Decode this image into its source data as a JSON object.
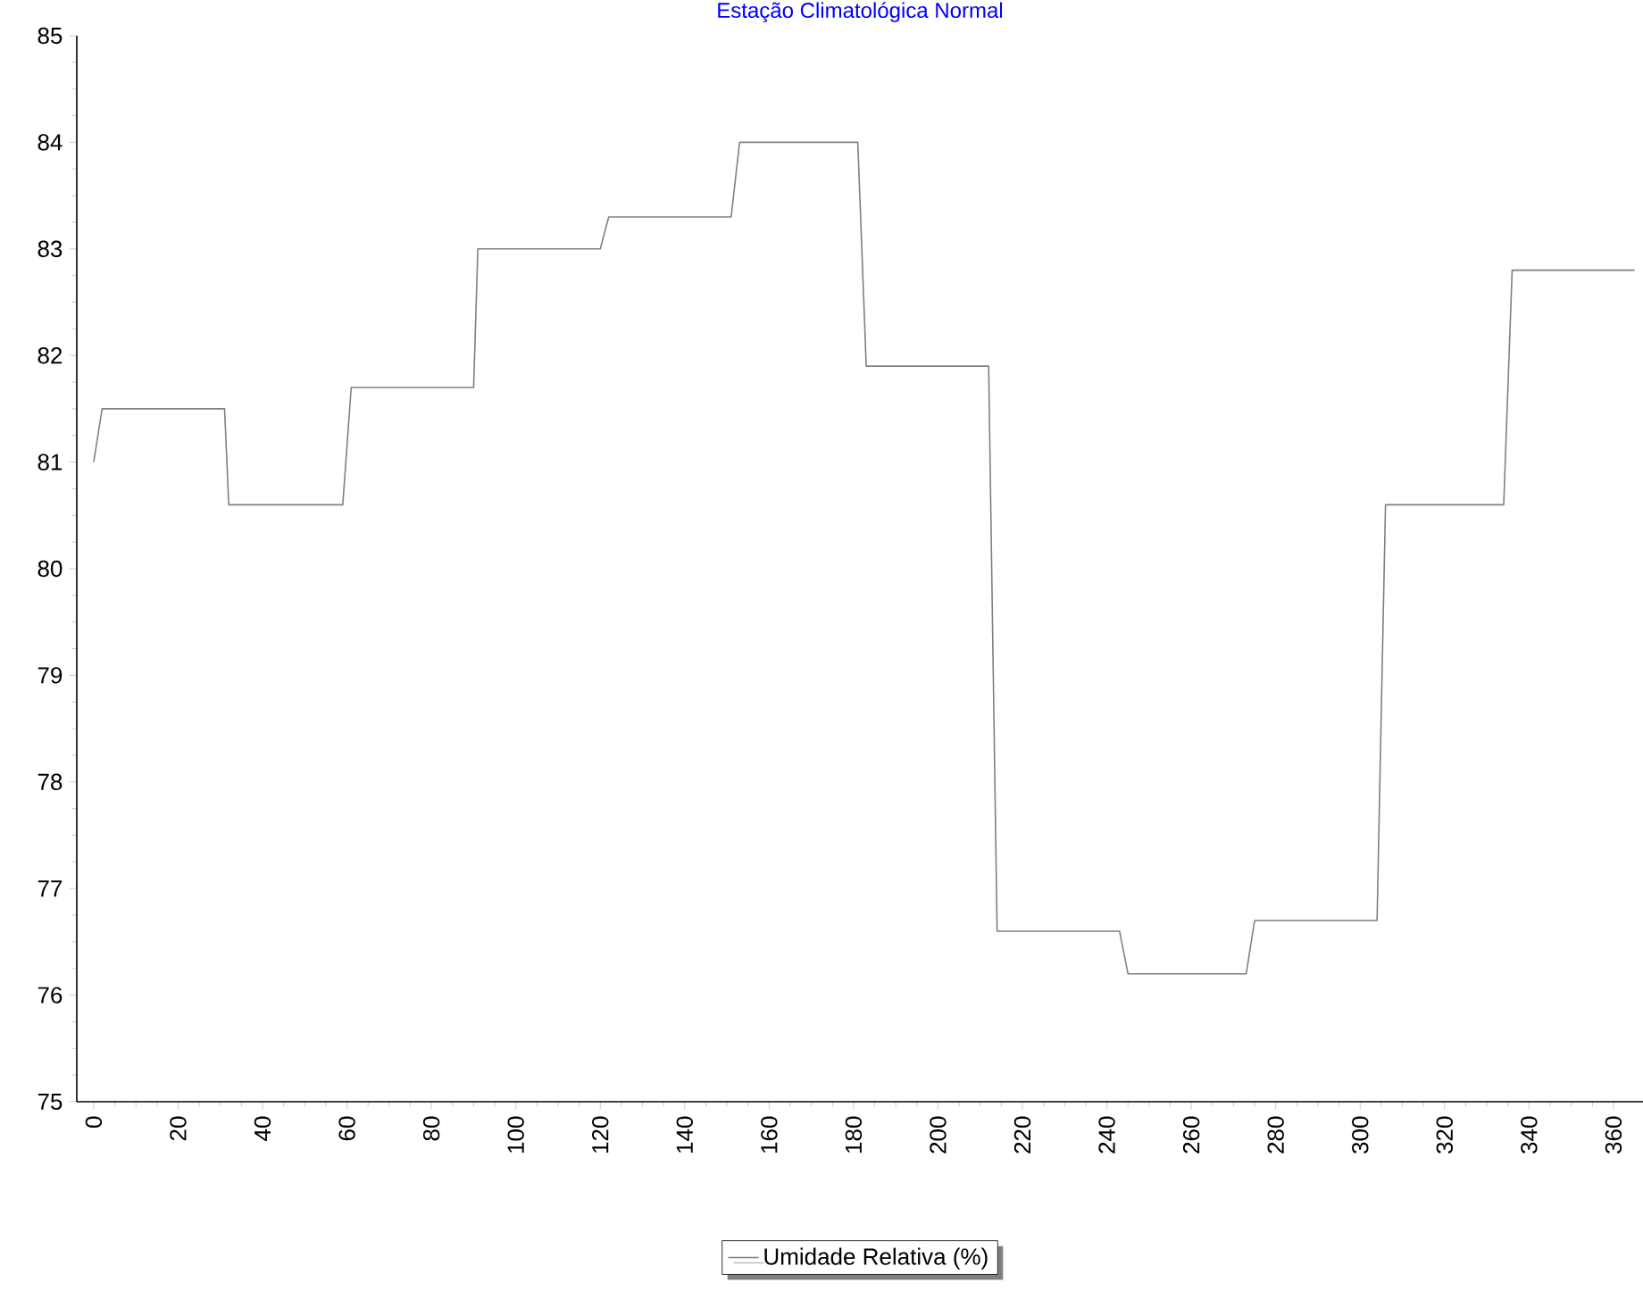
{
  "chart_data": {
    "type": "line",
    "title": "Estação Climatológica Normal",
    "x": [
      0,
      2,
      31,
      32,
      59,
      61,
      90,
      91,
      120,
      122,
      151,
      153,
      181,
      183,
      212,
      214,
      243,
      245,
      273,
      275,
      304,
      306,
      334,
      336,
      365
    ],
    "series": [
      {
        "name": "Umidade Relativa (%)",
        "color": "#808080",
        "values": [
          81.0,
          81.5,
          81.5,
          80.6,
          80.6,
          81.7,
          81.7,
          83.0,
          83.0,
          83.3,
          83.3,
          84.0,
          84.0,
          81.9,
          81.9,
          76.6,
          76.6,
          76.2,
          76.2,
          76.7,
          76.7,
          80.6,
          80.6,
          82.8,
          82.8
        ]
      }
    ],
    "xlim": [
      -4,
      367
    ],
    "xticks": [
      0,
      20,
      40,
      60,
      80,
      100,
      120,
      140,
      160,
      180,
      200,
      220,
      240,
      260,
      280,
      300,
      320,
      340,
      360
    ],
    "ylim": [
      75,
      85
    ],
    "yticks": [
      75,
      76,
      77,
      78,
      79,
      80,
      81,
      82,
      83,
      84,
      85
    ],
    "grid": false,
    "legend": "bottom",
    "marker": "none",
    "line_style": "solid"
  }
}
